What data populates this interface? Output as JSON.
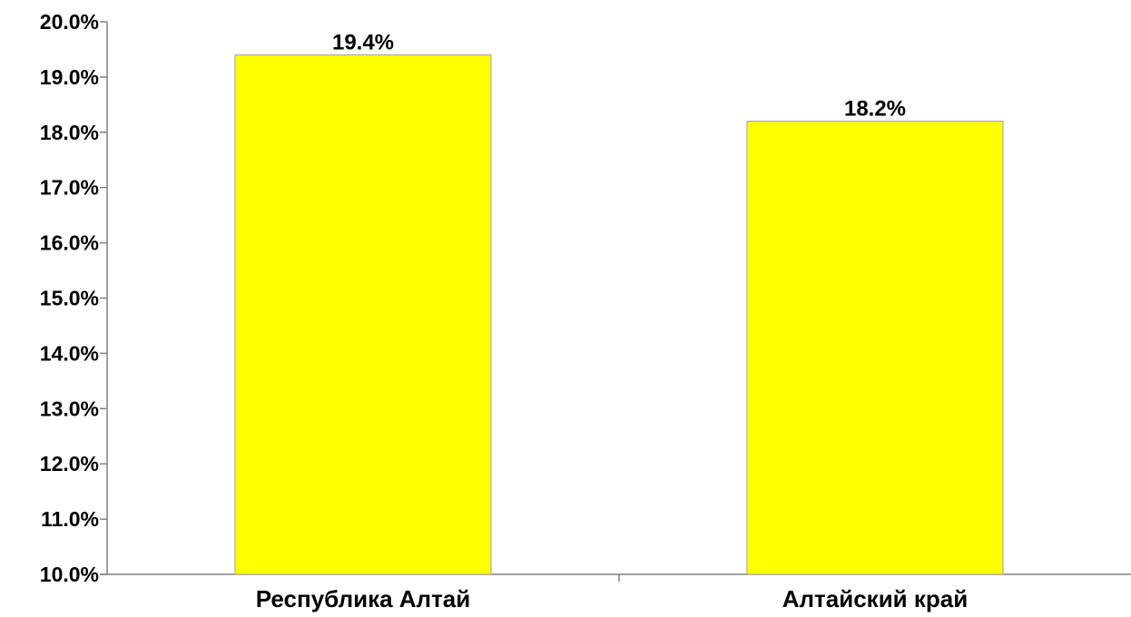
{
  "chart_data": {
    "type": "bar",
    "categories": [
      "Республика Алтай",
      "Алтайский край"
    ],
    "values": [
      19.4,
      18.2
    ],
    "data_labels": [
      "19.4%",
      "18.2%"
    ],
    "title": "",
    "xlabel": "",
    "ylabel": "",
    "ylim": [
      10.0,
      20.0
    ],
    "yticks": [
      10.0,
      11.0,
      12.0,
      13.0,
      14.0,
      15.0,
      16.0,
      17.0,
      18.0,
      19.0,
      20.0
    ],
    "ytick_labels": [
      "10.0%",
      "11.0%",
      "12.0%",
      "13.0%",
      "14.0%",
      "15.0%",
      "16.0%",
      "17.0%",
      "18.0%",
      "19.0%",
      "20.0%"
    ],
    "grid": false,
    "legend": "none",
    "colors": {
      "bar_fill": "#ffff00",
      "bar_stroke": "#a0a0a0",
      "axis": "#808080",
      "text": "#000000"
    }
  }
}
